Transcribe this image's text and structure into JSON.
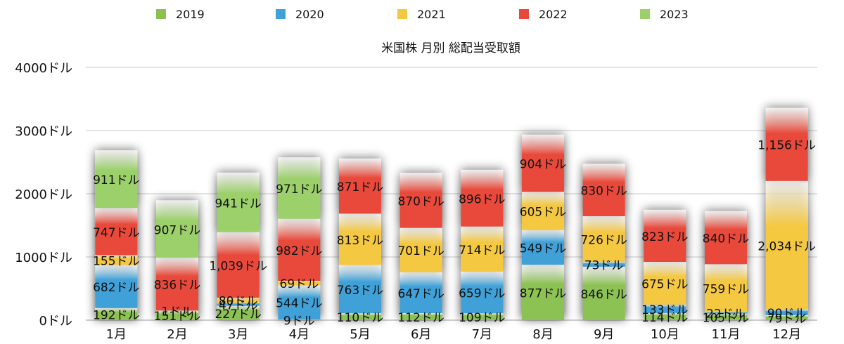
{
  "chart_data": {
    "type": "bar",
    "stacked": true,
    "title": "米国株 月別 総配当受取額",
    "xlabel": "",
    "ylabel": "",
    "ylim": [
      0,
      4000
    ],
    "yticks": [
      "0ドル",
      "1000ドル",
      "2000ドル",
      "3000ドル",
      "4000ドル"
    ],
    "grid": true,
    "legend_position": "top",
    "categories": [
      "1月",
      "2月",
      "3月",
      "4月",
      "5月",
      "6月",
      "7月",
      "8月",
      "9月",
      "10月",
      "11月",
      "12月"
    ],
    "series": [
      {
        "name": "2019",
        "color": "#8cc152",
        "values": [
          192,
          151,
          227,
          9,
          110,
          112,
          109,
          877,
          846,
          114,
          105,
          79
        ],
        "labels": [
          "192ドル",
          "151ドル",
          "227ドル",
          "9ドル",
          "110ドル",
          "112ドル",
          "109ドル",
          "877ドル",
          "846ドル",
          "114ドル",
          "105ドル",
          "79ドル"
        ]
      },
      {
        "name": "2020",
        "color": "#3fa1d8",
        "values": [
          682,
          1,
          47,
          544,
          763,
          647,
          659,
          549,
          73,
          133,
          22,
          90
        ],
        "labels": [
          "682ドル",
          "1ドル",
          "47ドル",
          "544ドル",
          "763ドル",
          "647ドル",
          "659ドル",
          "549ドル",
          "73ドル",
          "133ドル",
          "22ドル",
          "90ドル"
        ]
      },
      {
        "name": "2021",
        "color": "#f5c842",
        "values": [
          155,
          0,
          80,
          69,
          813,
          701,
          714,
          605,
          726,
          675,
          759,
          2034
        ],
        "labels": [
          "155ドル",
          "",
          "80ドル",
          "69ドル",
          "813ドル",
          "701ドル",
          "714ドル",
          "605ドル",
          "726ドル",
          "675ドル",
          "759ドル",
          "2,034ドル"
        ]
      },
      {
        "name": "2022",
        "color": "#e8493a",
        "values": [
          747,
          836,
          1039,
          982,
          871,
          870,
          896,
          904,
          830,
          823,
          840,
          1156
        ],
        "labels": [
          "747ドル",
          "836ドル",
          "1,039ドル",
          "982ドル",
          "871ドル",
          "870ドル",
          "896ドル",
          "904ドル",
          "830ドル",
          "823ドル",
          "840ドル",
          "1,156ドル"
        ]
      },
      {
        "name": "2023",
        "color": "#9bd06a",
        "values": [
          911,
          907,
          941,
          971,
          0,
          0,
          0,
          0,
          0,
          0,
          0,
          0
        ],
        "labels": [
          "911ドル",
          "907ドル",
          "941ドル",
          "971ドル",
          "",
          "",
          "",
          "",
          "",
          "",
          "",
          ""
        ]
      }
    ]
  }
}
